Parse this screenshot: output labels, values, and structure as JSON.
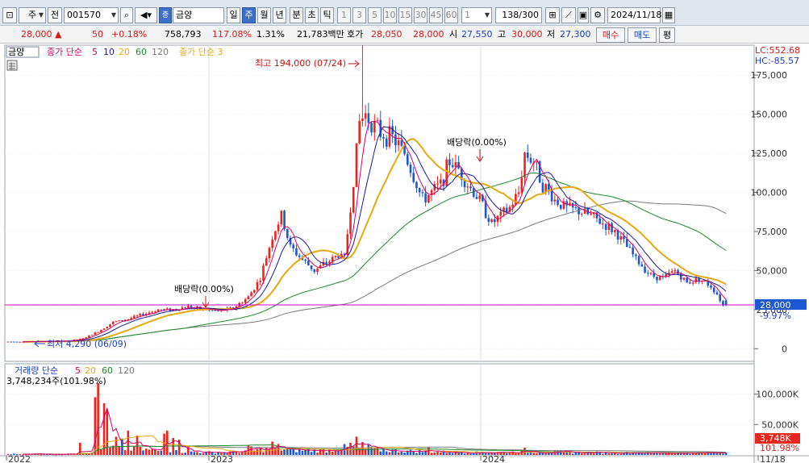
{
  "toolbar": {
    "market": "주",
    "prev_label": "전",
    "code": "001570",
    "stock_tag": "증",
    "stock_name": "금양",
    "periods": [
      "일",
      "주",
      "월",
      "년"
    ],
    "active_period": "주",
    "intervals": [
      "분",
      "초",
      "틱"
    ],
    "counts": [
      "1",
      "3",
      "5",
      "10",
      "15",
      "30",
      "45",
      "60"
    ],
    "unit": "1",
    "view": "138/300",
    "date": "2024/11/18"
  },
  "quote": {
    "price": "28,000",
    "change_mark": "▲",
    "change": "50",
    "change_pct": "+0.18%",
    "volume": "758,793",
    "vol_ratio": "117.08%",
    "turnover": "1.31%",
    "amount": "21,783백만",
    "ask_label": "호가",
    "ask1": "28,050",
    "ask2": "28,000",
    "open_label": "시",
    "open": "27,550",
    "high_label": "고",
    "high": "30,000",
    "low_label": "저",
    "low": "27,300",
    "buy_label": "매수",
    "sell_label": "매도",
    "eval_label": "평"
  },
  "price_panel": {
    "name": "금양",
    "ma_label": "종가 단순",
    "ma_periods": [
      "5",
      "10",
      "20",
      "60",
      "120"
    ],
    "ma2_label": "종가 단순 3",
    "lc": "LC:552.68",
    "hc": "HC:-85.57",
    "high_note": "최고 194,000 (07/24)",
    "low_note": "최저 4,290 (06/09)",
    "dividend_note": "배당락(0.00%)",
    "current_tag": "28,000",
    "current_pct": "-9.97%"
  },
  "volume_panel": {
    "label": "거래량 단순",
    "ma_periods": [
      "5",
      "20",
      "60",
      "120"
    ],
    "info": "3,748,234주(101.98%)",
    "current_tag": "3,748K",
    "current_pct": "101.98%"
  },
  "colors": {
    "up": "#e8261f",
    "down": "#1c58d1",
    "ma5": "#d6006d",
    "ma10": "#1a1a9a",
    "ma20": "#e8a811",
    "ma60": "#1e8a2c",
    "ma120": "#7a7a7a",
    "ma3": "#e8a811",
    "current_line": "#c800c8",
    "active": "#3d6fc6"
  },
  "chart_data": {
    "type": "candlestick",
    "y_ticks": [
      0,
      25000,
      50000,
      75000,
      100000,
      125000,
      150000,
      175000
    ],
    "y_tick_labels": [
      "0",
      "25,000",
      "50,000",
      "75,000",
      "100,000",
      "125,000",
      "150,000",
      "175,000"
    ],
    "ylim": [
      -5000,
      190000
    ],
    "volume_ticks": [
      50000,
      100000
    ],
    "volume_tick_labels": [
      "50,000K",
      "100,000K"
    ],
    "volume_ylim": [
      0,
      130000
    ],
    "x_labels": [
      "2022",
      "2023",
      "2024",
      "11/18"
    ],
    "highest": 194000,
    "lowest": 4290,
    "last_close": 28000,
    "last_volume": 3748,
    "price_trend": [
      [
        0,
        4500
      ],
      [
        10,
        4600
      ],
      [
        20,
        5000
      ],
      [
        25,
        6500
      ],
      [
        30,
        11000
      ],
      [
        35,
        17000
      ],
      [
        40,
        19000
      ],
      [
        45,
        22000
      ],
      [
        50,
        25000
      ],
      [
        55,
        25000
      ],
      [
        60,
        27000
      ],
      [
        62,
        26000
      ],
      [
        66,
        25000
      ],
      [
        70,
        24000
      ],
      [
        75,
        26000
      ],
      [
        80,
        33000
      ],
      [
        84,
        45000
      ],
      [
        88,
        72000
      ],
      [
        91,
        85000
      ],
      [
        94,
        65000
      ],
      [
        98,
        57000
      ],
      [
        102,
        50000
      ],
      [
        106,
        55000
      ],
      [
        110,
        60000
      ],
      [
        112,
        58000
      ],
      [
        114,
        90000
      ],
      [
        117,
        145000
      ],
      [
        119,
        150000
      ],
      [
        121,
        145000
      ],
      [
        124,
        138000
      ],
      [
        128,
        135000
      ],
      [
        132,
        125000
      ],
      [
        135,
        110000
      ],
      [
        138,
        95000
      ],
      [
        141,
        100000
      ],
      [
        144,
        105000
      ],
      [
        147,
        120000
      ],
      [
        150,
        115000
      ],
      [
        153,
        105000
      ],
      [
        157,
        95000
      ],
      [
        161,
        80000
      ],
      [
        164,
        85000
      ],
      [
        167,
        90000
      ],
      [
        170,
        100000
      ],
      [
        172,
        125000
      ],
      [
        175,
        120000
      ],
      [
        178,
        105000
      ],
      [
        182,
        95000
      ],
      [
        186,
        90000
      ],
      [
        190,
        88000
      ],
      [
        194,
        85000
      ],
      [
        198,
        80000
      ],
      [
        202,
        75000
      ],
      [
        206,
        65000
      ],
      [
        210,
        55000
      ],
      [
        214,
        47000
      ],
      [
        218,
        45000
      ],
      [
        222,
        50000
      ],
      [
        226,
        42000
      ],
      [
        230,
        45000
      ],
      [
        234,
        40000
      ],
      [
        236,
        35000
      ],
      [
        238,
        28000
      ]
    ],
    "volume_trend": [
      [
        0,
        1500
      ],
      [
        20,
        1500
      ],
      [
        25,
        3000
      ],
      [
        30,
        8000
      ],
      [
        35,
        12000
      ],
      [
        40,
        10000
      ],
      [
        45,
        9000
      ],
      [
        50,
        7000
      ],
      [
        55,
        6000
      ],
      [
        60,
        5000
      ],
      [
        70,
        4000
      ],
      [
        80,
        6000
      ],
      [
        88,
        11000
      ],
      [
        95,
        8000
      ],
      [
        105,
        7000
      ],
      [
        112,
        12000
      ],
      [
        118,
        10000
      ],
      [
        125,
        8000
      ],
      [
        135,
        6000
      ],
      [
        145,
        5000
      ],
      [
        155,
        4000
      ],
      [
        165,
        4500
      ],
      [
        175,
        5000
      ],
      [
        190,
        4000
      ],
      [
        210,
        3500
      ],
      [
        225,
        3000
      ],
      [
        238,
        3700
      ]
    ],
    "volume_spikes": [
      [
        29,
        95000
      ],
      [
        30,
        118000
      ],
      [
        32,
        85000
      ],
      [
        33,
        75000
      ],
      [
        55,
        28000
      ],
      [
        57,
        25000
      ],
      [
        88,
        22000
      ],
      [
        90,
        18000
      ],
      [
        118,
        21000
      ],
      [
        120,
        17000
      ],
      [
        172,
        12000
      ],
      [
        24,
        20000
      ],
      [
        36,
        30000
      ],
      [
        38,
        27000
      ],
      [
        40,
        40000
      ],
      [
        43,
        32000
      ],
      [
        52,
        35000
      ],
      [
        53,
        40000
      ],
      [
        60,
        14000
      ],
      [
        80,
        16000
      ],
      [
        81,
        14000
      ],
      [
        114,
        20000
      ],
      [
        116,
        30000
      ],
      [
        140,
        13000
      ]
    ]
  }
}
